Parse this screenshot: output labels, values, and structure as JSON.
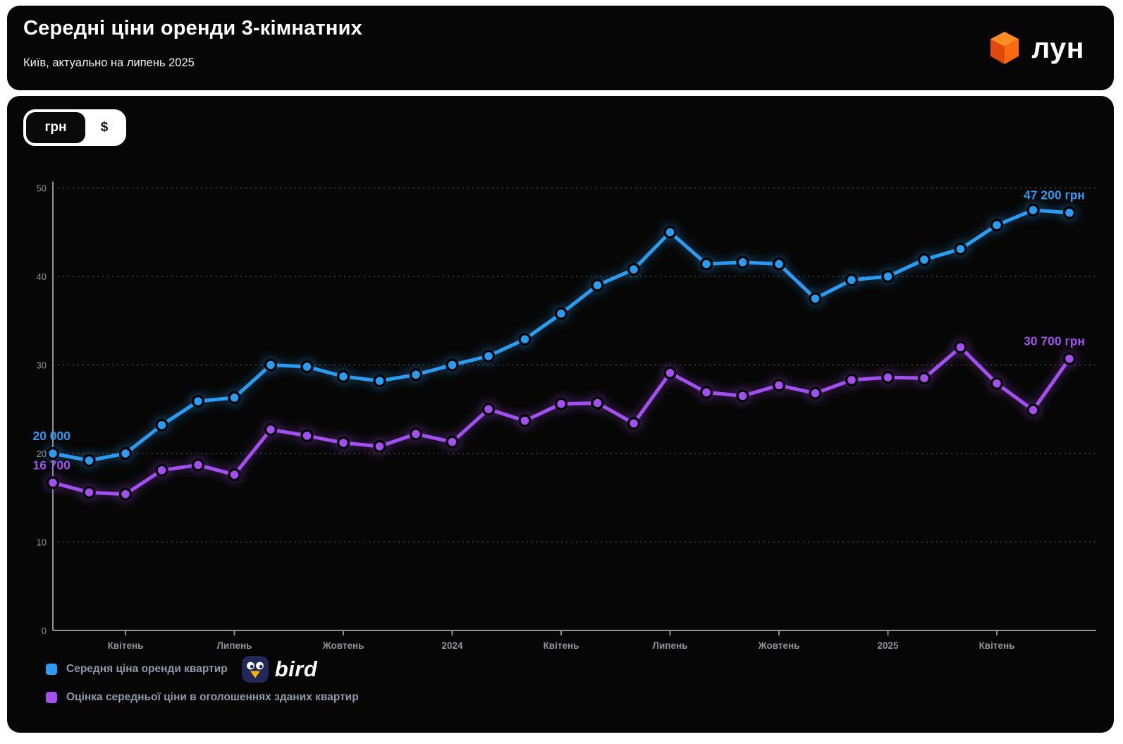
{
  "header": {
    "title": "Середні ціни оренди 3-кімнатних",
    "subtitle": "Київ, актуально на липень 2025",
    "brand": {
      "name": "лун",
      "cube_colors": {
        "top": "#ff8c1f",
        "left": "#e2470b",
        "right": "#fb6a10"
      }
    }
  },
  "currency_toggle": {
    "options": [
      {
        "label": "грн",
        "selected": true
      },
      {
        "label": "$",
        "selected": false
      }
    ]
  },
  "chart_data": {
    "type": "line",
    "title": "Середні ціни оренди 3-кімнатних",
    "ylim": [
      0,
      50
    ],
    "y_ticks": [
      0,
      10,
      20,
      30,
      40,
      50
    ],
    "values_unit": "тис. грн",
    "grid": "horizontal-dotted",
    "x_tick_labels": [
      {
        "index": 2,
        "label": "Квітень"
      },
      {
        "index": 5,
        "label": "Липень"
      },
      {
        "index": 8,
        "label": "Жовтень"
      },
      {
        "index": 11,
        "label": "2024"
      },
      {
        "index": 14,
        "label": "Квітень"
      },
      {
        "index": 17,
        "label": "Липень"
      },
      {
        "index": 20,
        "label": "Жовтень"
      },
      {
        "index": 23,
        "label": "2025"
      },
      {
        "index": 26,
        "label": "Квітень"
      }
    ],
    "series": [
      {
        "name": "Середня ціна оренди квартир",
        "color": "#2b9cf2",
        "first_label": "20 000",
        "last_label": "47 200 грн",
        "values_thousands": [
          20.0,
          19.2,
          20.0,
          23.2,
          25.9,
          26.3,
          30.0,
          29.8,
          28.7,
          28.2,
          28.9,
          30.0,
          31.0,
          32.9,
          35.8,
          39.0,
          40.8,
          45.0,
          41.4,
          41.6,
          41.4,
          37.5,
          39.6,
          40.0,
          41.9,
          43.1,
          45.8,
          47.5,
          47.2
        ]
      },
      {
        "name": "Оцінка середньої ціни в оголошеннях зданих квартир",
        "color": "#a450f0",
        "first_label": "16 700",
        "last_label": "30 700 грн",
        "values_thousands": [
          16.7,
          15.6,
          15.4,
          18.1,
          18.7,
          17.6,
          22.7,
          22.0,
          21.2,
          20.8,
          22.2,
          21.3,
          25.0,
          23.7,
          25.6,
          25.7,
          23.4,
          29.1,
          26.9,
          26.5,
          27.7,
          26.8,
          28.3,
          28.6,
          28.5,
          32.0,
          27.9,
          24.9,
          30.7
        ]
      }
    ],
    "legend_position": "bottom-left"
  },
  "legend": {
    "items": [
      {
        "label": "Середня ціна оренди квартир",
        "color": "#2b9cf2"
      },
      {
        "label": "Оцінка середньої ціни в оголошеннях зданих квартир",
        "color": "#a450f0"
      }
    ],
    "partner": {
      "name": "bird",
      "icon_bg": "#232858",
      "beak_color": "#ffb300"
    }
  }
}
